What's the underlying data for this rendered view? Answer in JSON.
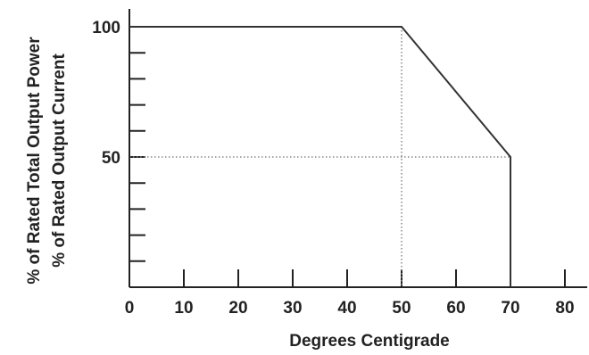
{
  "chart_data": {
    "type": "line",
    "xlabel": "Degrees Centigrade",
    "ylabels": [
      "% of Rated Total Output Power",
      "% of Rated Output Current"
    ],
    "xlim": [
      0,
      80
    ],
    "ylim": [
      0,
      100
    ],
    "x_ticks": [
      "0",
      "10",
      "20",
      "30",
      "40",
      "50",
      "60",
      "70",
      "80"
    ],
    "y_ticks": [
      "100",
      "50"
    ],
    "series": [
      {
        "x": [
          0,
          50,
          70,
          70
        ],
        "y": [
          100,
          100,
          50,
          0
        ]
      }
    ],
    "reference_lines": [
      {
        "from": [
          50,
          100
        ],
        "to": [
          50,
          0
        ],
        "style": "dotted"
      },
      {
        "from": [
          0,
          50
        ],
        "to": [
          70,
          50
        ],
        "style": "dotted"
      }
    ],
    "colors": {
      "line": "#333333",
      "axis": "#222222",
      "text": "#222222",
      "dotted": "#888888"
    },
    "grid": false
  }
}
